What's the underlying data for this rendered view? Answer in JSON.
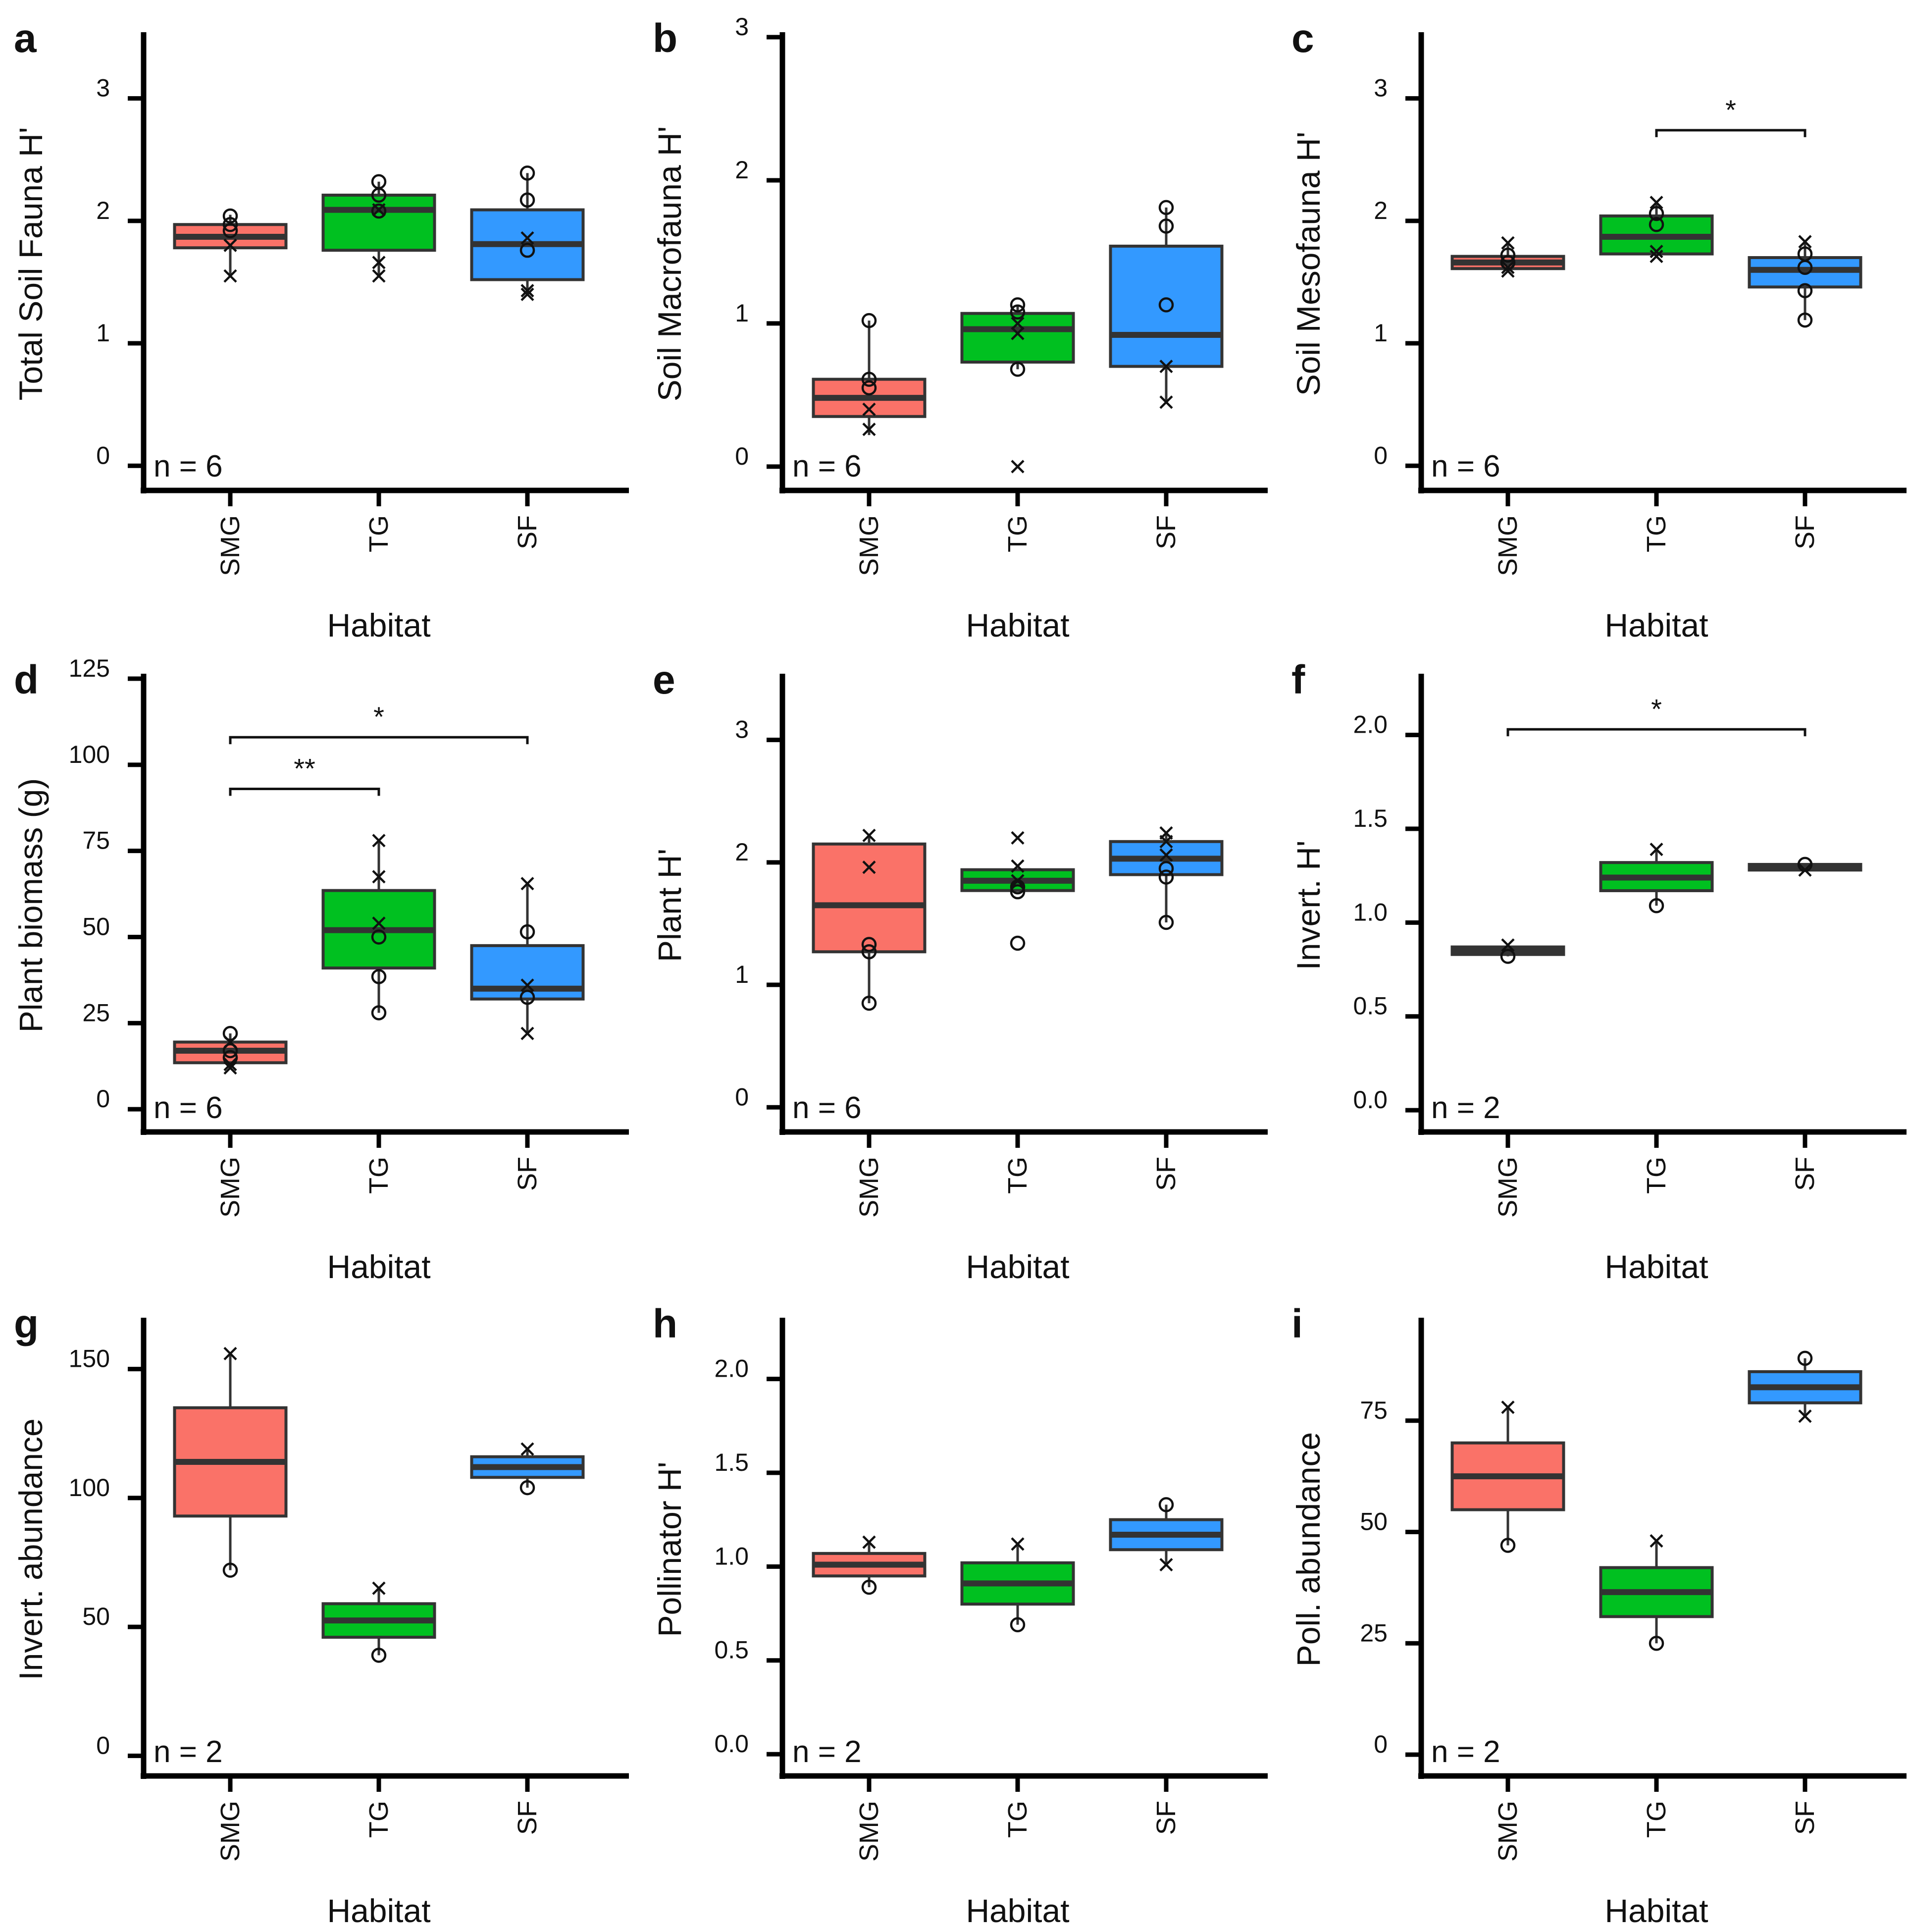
{
  "chart_data": [
    {
      "panel": "a",
      "type": "box",
      "title": "",
      "ylabel": "Total Soil Fauna H'",
      "xlabel": "Habitat",
      "ylim": [
        -0.1,
        3.5
      ],
      "yticks": [
        0,
        1,
        2,
        3
      ],
      "ytick_labels": [
        "0",
        "1",
        "2",
        "3"
      ],
      "categories": [
        "SMG",
        "TG",
        "SF"
      ],
      "n_label": "n = 6",
      "boxes": [
        {
          "q1": 1.78,
          "median": 1.87,
          "q3": 1.97,
          "whisker_low": 1.55,
          "whisker_high": 2.05
        },
        {
          "q1": 1.76,
          "median": 2.09,
          "q3": 2.21,
          "whisker_low": 1.55,
          "whisker_high": 2.32
        },
        {
          "q1": 1.52,
          "median": 1.81,
          "q3": 2.09,
          "whisker_low": 1.4,
          "whisker_high": 2.39
        }
      ],
      "points": [
        {
          "cat": 0,
          "y": 2.04,
          "marker": "circle"
        },
        {
          "cat": 0,
          "y": 1.97,
          "marker": "circle"
        },
        {
          "cat": 0,
          "y": 1.92,
          "marker": "circle"
        },
        {
          "cat": 0,
          "y": 1.8,
          "marker": "x"
        },
        {
          "cat": 0,
          "y": 1.55,
          "marker": "x"
        },
        {
          "cat": 1,
          "y": 2.32,
          "marker": "circle"
        },
        {
          "cat": 1,
          "y": 2.21,
          "marker": "circle"
        },
        {
          "cat": 1,
          "y": 2.09,
          "marker": "x"
        },
        {
          "cat": 1,
          "y": 2.08,
          "marker": "circle"
        },
        {
          "cat": 1,
          "y": 1.66,
          "marker": "x"
        },
        {
          "cat": 1,
          "y": 1.55,
          "marker": "x"
        },
        {
          "cat": 2,
          "y": 2.39,
          "marker": "circle"
        },
        {
          "cat": 2,
          "y": 2.17,
          "marker": "circle"
        },
        {
          "cat": 2,
          "y": 1.86,
          "marker": "x"
        },
        {
          "cat": 2,
          "y": 1.76,
          "marker": "circle"
        },
        {
          "cat": 2,
          "y": 1.43,
          "marker": "x"
        },
        {
          "cat": 2,
          "y": 1.4,
          "marker": "x"
        }
      ],
      "significance": []
    },
    {
      "panel": "b",
      "type": "box",
      "title": "",
      "ylabel": "Soil Macrofauna H'",
      "xlabel": "Habitat",
      "ylim": [
        -0.08,
        3.0
      ],
      "yticks": [
        0,
        1,
        2,
        3
      ],
      "ytick_labels": [
        "0",
        "1",
        "2",
        "3"
      ],
      "categories": [
        "SMG",
        "TG",
        "SF"
      ],
      "n_label": "n = 6",
      "boxes": [
        {
          "q1": 0.35,
          "median": 0.48,
          "q3": 0.61,
          "whisker_low": 0.22,
          "whisker_high": 1.02
        },
        {
          "q1": 0.73,
          "median": 0.96,
          "q3": 1.07,
          "whisker_low": 0.68,
          "whisker_high": 1.13
        },
        {
          "q1": 0.7,
          "median": 0.92,
          "q3": 1.54,
          "whisker_low": 0.45,
          "whisker_high": 1.81
        }
      ],
      "points": [
        {
          "cat": 0,
          "y": 1.02,
          "marker": "circle"
        },
        {
          "cat": 0,
          "y": 0.61,
          "marker": "circle"
        },
        {
          "cat": 0,
          "y": 0.55,
          "marker": "circle"
        },
        {
          "cat": 0,
          "y": 0.4,
          "marker": "x"
        },
        {
          "cat": 0,
          "y": 0.26,
          "marker": "x"
        },
        {
          "cat": 1,
          "y": 1.13,
          "marker": "circle"
        },
        {
          "cat": 1,
          "y": 1.08,
          "marker": "circle"
        },
        {
          "cat": 1,
          "y": 1.0,
          "marker": "x"
        },
        {
          "cat": 1,
          "y": 0.93,
          "marker": "x"
        },
        {
          "cat": 1,
          "y": 0.68,
          "marker": "circle"
        },
        {
          "cat": 1,
          "y": 0.0,
          "marker": "x"
        },
        {
          "cat": 2,
          "y": 1.81,
          "marker": "circle"
        },
        {
          "cat": 2,
          "y": 1.68,
          "marker": "circle"
        },
        {
          "cat": 2,
          "y": 1.13,
          "marker": "circle"
        },
        {
          "cat": 2,
          "y": 0.7,
          "marker": "x"
        },
        {
          "cat": 2,
          "y": 0.45,
          "marker": "x"
        }
      ],
      "significance": []
    },
    {
      "panel": "c",
      "type": "box",
      "title": "",
      "ylabel": "Soil Mesofauna H'",
      "xlabel": "Habitat",
      "ylim": [
        -0.1,
        3.5
      ],
      "yticks": [
        0,
        1,
        2,
        3
      ],
      "ytick_labels": [
        "0",
        "1",
        "2",
        "3"
      ],
      "categories": [
        "SMG",
        "TG",
        "SF"
      ],
      "n_label": "n = 6",
      "boxes": [
        {
          "q1": 1.61,
          "median": 1.66,
          "q3": 1.71,
          "whisker_low": 1.59,
          "whisker_high": 1.82
        },
        {
          "q1": 1.73,
          "median": 1.87,
          "q3": 2.04,
          "whisker_low": 1.71,
          "whisker_high": 2.15
        },
        {
          "q1": 1.46,
          "median": 1.6,
          "q3": 1.7,
          "whisker_low": 1.19,
          "whisker_high": 1.83
        }
      ],
      "points": [
        {
          "cat": 0,
          "y": 1.82,
          "marker": "x"
        },
        {
          "cat": 0,
          "y": 1.72,
          "marker": "circle"
        },
        {
          "cat": 0,
          "y": 1.66,
          "marker": "circle"
        },
        {
          "cat": 0,
          "y": 1.62,
          "marker": "x"
        },
        {
          "cat": 0,
          "y": 1.59,
          "marker": "x"
        },
        {
          "cat": 1,
          "y": 2.15,
          "marker": "x"
        },
        {
          "cat": 1,
          "y": 2.06,
          "marker": "circle"
        },
        {
          "cat": 1,
          "y": 1.97,
          "marker": "circle"
        },
        {
          "cat": 1,
          "y": 1.75,
          "marker": "x"
        },
        {
          "cat": 1,
          "y": 1.71,
          "marker": "x"
        },
        {
          "cat": 2,
          "y": 1.83,
          "marker": "x"
        },
        {
          "cat": 2,
          "y": 1.73,
          "marker": "circle"
        },
        {
          "cat": 2,
          "y": 1.62,
          "marker": "circle"
        },
        {
          "cat": 2,
          "y": 1.43,
          "marker": "circle"
        },
        {
          "cat": 2,
          "y": 1.19,
          "marker": "circle"
        }
      ],
      "significance": [
        {
          "from": 1,
          "to": 2,
          "y": 2.74,
          "label": "*"
        }
      ]
    },
    {
      "panel": "d",
      "type": "box",
      "title": "",
      "ylabel": "Plant biomass (g)",
      "xlabel": "Habitat",
      "ylim": [
        -3,
        125
      ],
      "yticks": [
        0,
        25,
        50,
        75,
        100,
        125
      ],
      "ytick_labels": [
        "0",
        "25",
        "50",
        "75",
        "100",
        "125"
      ],
      "categories": [
        "SMG",
        "TG",
        "SF"
      ],
      "n_label": "n = 6",
      "boxes": [
        {
          "q1": 13.5,
          "median": 17.0,
          "q3": 19.5,
          "whisker_low": 12.0,
          "whisker_high": 22.0
        },
        {
          "q1": 41.0,
          "median": 52.0,
          "q3": 63.5,
          "whisker_low": 28.0,
          "whisker_high": 78.0
        },
        {
          "q1": 32.0,
          "median": 35.0,
          "q3": 47.5,
          "whisker_low": 22.0,
          "whisker_high": 65.5
        }
      ],
      "points": [
        {
          "cat": 0,
          "y": 22.0,
          "marker": "circle"
        },
        {
          "cat": 0,
          "y": 19.5,
          "marker": "x"
        },
        {
          "cat": 0,
          "y": 17.0,
          "marker": "circle"
        },
        {
          "cat": 0,
          "y": 15.0,
          "marker": "circle"
        },
        {
          "cat": 0,
          "y": 13.0,
          "marker": "x"
        },
        {
          "cat": 0,
          "y": 12.0,
          "marker": "x"
        },
        {
          "cat": 1,
          "y": 78.0,
          "marker": "x"
        },
        {
          "cat": 1,
          "y": 67.5,
          "marker": "x"
        },
        {
          "cat": 1,
          "y": 54.0,
          "marker": "x"
        },
        {
          "cat": 1,
          "y": 50.0,
          "marker": "circle"
        },
        {
          "cat": 1,
          "y": 38.5,
          "marker": "circle"
        },
        {
          "cat": 1,
          "y": 28.0,
          "marker": "circle"
        },
        {
          "cat": 2,
          "y": 65.5,
          "marker": "x"
        },
        {
          "cat": 2,
          "y": 51.5,
          "marker": "circle"
        },
        {
          "cat": 2,
          "y": 36.0,
          "marker": "x"
        },
        {
          "cat": 2,
          "y": 32.5,
          "marker": "circle"
        },
        {
          "cat": 2,
          "y": 22.0,
          "marker": "x"
        }
      ],
      "significance": [
        {
          "from": 0,
          "to": 2,
          "y": 108,
          "label": "*"
        },
        {
          "from": 0,
          "to": 1,
          "y": 93,
          "label": "**"
        }
      ]
    },
    {
      "panel": "e",
      "type": "box",
      "title": "",
      "ylabel": "Plant H'",
      "xlabel": "Habitat",
      "ylim": [
        -0.1,
        3.5
      ],
      "yticks": [
        0,
        1,
        2,
        3
      ],
      "ytick_labels": [
        "0",
        "1",
        "2",
        "3"
      ],
      "categories": [
        "SMG",
        "TG",
        "SF"
      ],
      "n_label": "n = 6",
      "boxes": [
        {
          "q1": 1.27,
          "median": 1.65,
          "q3": 2.15,
          "whisker_low": 0.85,
          "whisker_high": 2.22
        },
        {
          "q1": 1.77,
          "median": 1.85,
          "q3": 1.94,
          "whisker_low": 1.77,
          "whisker_high": 1.94
        },
        {
          "q1": 1.9,
          "median": 2.03,
          "q3": 2.17,
          "whisker_low": 1.51,
          "whisker_high": 2.24
        }
      ],
      "points": [
        {
          "cat": 0,
          "y": 2.22,
          "marker": "x"
        },
        {
          "cat": 0,
          "y": 1.96,
          "marker": "x"
        },
        {
          "cat": 0,
          "y": 1.33,
          "marker": "circle"
        },
        {
          "cat": 0,
          "y": 1.27,
          "marker": "circle"
        },
        {
          "cat": 0,
          "y": 0.85,
          "marker": "circle"
        },
        {
          "cat": 1,
          "y": 2.2,
          "marker": "x"
        },
        {
          "cat": 1,
          "y": 1.97,
          "marker": "x"
        },
        {
          "cat": 1,
          "y": 1.85,
          "marker": "x"
        },
        {
          "cat": 1,
          "y": 1.8,
          "marker": "circle"
        },
        {
          "cat": 1,
          "y": 1.76,
          "marker": "circle"
        },
        {
          "cat": 1,
          "y": 1.34,
          "marker": "circle"
        },
        {
          "cat": 2,
          "y": 2.24,
          "marker": "x"
        },
        {
          "cat": 2,
          "y": 2.17,
          "marker": "x"
        },
        {
          "cat": 2,
          "y": 2.06,
          "marker": "x"
        },
        {
          "cat": 2,
          "y": 1.95,
          "marker": "circle"
        },
        {
          "cat": 2,
          "y": 1.88,
          "marker": "circle"
        },
        {
          "cat": 2,
          "y": 1.51,
          "marker": "circle"
        }
      ],
      "significance": []
    },
    {
      "panel": "f",
      "type": "box",
      "title": "",
      "ylabel": "Invert. H'",
      "xlabel": "Habitat",
      "ylim": [
        -0.05,
        2.3
      ],
      "yticks": [
        0.0,
        0.5,
        1.0,
        1.5,
        2.0
      ],
      "ytick_labels": [
        "0.0",
        "0.5",
        "1.0",
        "1.5",
        "2.0"
      ],
      "categories": [
        "SMG",
        "TG",
        "SF"
      ],
      "n_label": "n = 2",
      "boxes": [
        {
          "q1": 0.83,
          "median": 0.85,
          "q3": 0.87,
          "whisker_low": 0.82,
          "whisker_high": 0.88
        },
        {
          "q1": 1.17,
          "median": 1.24,
          "q3": 1.32,
          "whisker_low": 1.09,
          "whisker_high": 1.39
        },
        {
          "q1": 1.28,
          "median": 1.3,
          "q3": 1.31,
          "whisker_low": 1.28,
          "whisker_high": 1.31
        }
      ],
      "points": [
        {
          "cat": 0,
          "y": 0.88,
          "marker": "x"
        },
        {
          "cat": 0,
          "y": 0.82,
          "marker": "circle"
        },
        {
          "cat": 1,
          "y": 1.39,
          "marker": "x"
        },
        {
          "cat": 1,
          "y": 1.09,
          "marker": "circle"
        },
        {
          "cat": 2,
          "y": 1.31,
          "marker": "circle"
        },
        {
          "cat": 2,
          "y": 1.28,
          "marker": "x"
        }
      ],
      "significance": [
        {
          "from": 0,
          "to": 2,
          "y": 2.03,
          "label": "*"
        }
      ]
    },
    {
      "panel": "g",
      "type": "box",
      "title": "",
      "ylabel": "Invert. abundance",
      "xlabel": "Habitat",
      "ylim": [
        -3,
        168
      ],
      "yticks": [
        0,
        50,
        100,
        150
      ],
      "ytick_labels": [
        "0",
        "50",
        "100",
        "150"
      ],
      "categories": [
        "SMG",
        "TG",
        "SF"
      ],
      "n_label": "n = 2",
      "boxes": [
        {
          "q1": 93,
          "median": 114,
          "q3": 135,
          "whisker_low": 72,
          "whisker_high": 156
        },
        {
          "q1": 46,
          "median": 52.5,
          "q3": 59,
          "whisker_low": 39,
          "whisker_high": 65
        },
        {
          "q1": 108,
          "median": 112,
          "q3": 116,
          "whisker_low": 104,
          "whisker_high": 119
        }
      ],
      "points": [
        {
          "cat": 0,
          "y": 156,
          "marker": "x"
        },
        {
          "cat": 0,
          "y": 72,
          "marker": "circle"
        },
        {
          "cat": 1,
          "y": 65,
          "marker": "x"
        },
        {
          "cat": 1,
          "y": 39,
          "marker": "circle"
        },
        {
          "cat": 2,
          "y": 119,
          "marker": "x"
        },
        {
          "cat": 2,
          "y": 104,
          "marker": "circle"
        }
      ],
      "significance": []
    },
    {
      "panel": "h",
      "type": "box",
      "title": "",
      "ylabel": "Pollinator H'",
      "xlabel": "Habitat",
      "ylim": [
        -0.05,
        2.3
      ],
      "yticks": [
        0.0,
        0.5,
        1.0,
        1.5,
        2.0
      ],
      "ytick_labels": [
        "0.0",
        "0.5",
        "1.0",
        "1.5",
        "2.0"
      ],
      "categories": [
        "SMG",
        "TG",
        "SF"
      ],
      "n_label": "n = 2",
      "boxes": [
        {
          "q1": 0.95,
          "median": 1.01,
          "q3": 1.07,
          "whisker_low": 0.89,
          "whisker_high": 1.13
        },
        {
          "q1": 0.8,
          "median": 0.91,
          "q3": 1.02,
          "whisker_low": 0.69,
          "whisker_high": 1.12
        },
        {
          "q1": 1.09,
          "median": 1.17,
          "q3": 1.25,
          "whisker_low": 1.01,
          "whisker_high": 1.33
        }
      ],
      "points": [
        {
          "cat": 0,
          "y": 1.13,
          "marker": "x"
        },
        {
          "cat": 0,
          "y": 0.89,
          "marker": "circle"
        },
        {
          "cat": 1,
          "y": 1.12,
          "marker": "x"
        },
        {
          "cat": 1,
          "y": 0.69,
          "marker": "circle"
        },
        {
          "cat": 2,
          "y": 1.33,
          "marker": "circle"
        },
        {
          "cat": 2,
          "y": 1.01,
          "marker": "x"
        }
      ],
      "significance": []
    },
    {
      "panel": "i",
      "type": "box",
      "title": "",
      "ylabel": "Poll. abundance",
      "xlabel": "Habitat",
      "ylim": [
        -2,
        97
      ],
      "yticks": [
        0,
        25,
        50,
        75
      ],
      "ytick_labels": [
        "0",
        "25",
        "50",
        "75"
      ],
      "categories": [
        "SMG",
        "TG",
        "SF"
      ],
      "n_label": "n = 2",
      "boxes": [
        {
          "q1": 55,
          "median": 62.5,
          "q3": 70,
          "whisker_low": 47,
          "whisker_high": 78
        },
        {
          "q1": 31,
          "median": 36.5,
          "q3": 42,
          "whisker_low": 25,
          "whisker_high": 48
        },
        {
          "q1": 79,
          "median": 82.5,
          "q3": 86,
          "whisker_low": 76,
          "whisker_high": 89
        }
      ],
      "points": [
        {
          "cat": 0,
          "y": 78,
          "marker": "x"
        },
        {
          "cat": 0,
          "y": 47,
          "marker": "circle"
        },
        {
          "cat": 1,
          "y": 48,
          "marker": "x"
        },
        {
          "cat": 1,
          "y": 25,
          "marker": "circle"
        },
        {
          "cat": 2,
          "y": 89,
          "marker": "circle"
        },
        {
          "cat": 2,
          "y": 76,
          "marker": "x"
        }
      ],
      "significance": []
    }
  ],
  "colors": {
    "SMG": "#fa7268",
    "TG": "#00c020",
    "SF": "#3399ff",
    "line": "#333333",
    "axis": "#000000"
  }
}
